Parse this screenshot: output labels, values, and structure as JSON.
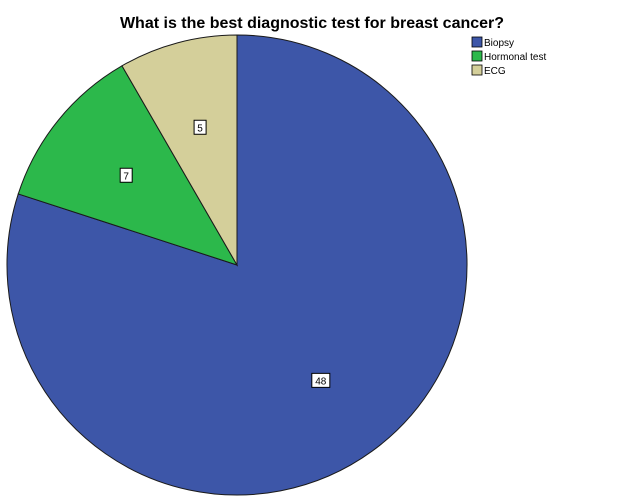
{
  "chart_data": {
    "type": "pie",
    "title": "What is the best diagnostic test for breast cancer?",
    "categories": [
      "Biopsy",
      "Hormonal test",
      "ECG"
    ],
    "values": [
      48,
      7,
      5
    ],
    "colors": [
      "#3d56a8",
      "#2cb84b",
      "#d4cf9a"
    ],
    "start_angle_deg": 0,
    "direction": "clockwise",
    "legend_position": "top-right",
    "data_labels": true
  }
}
